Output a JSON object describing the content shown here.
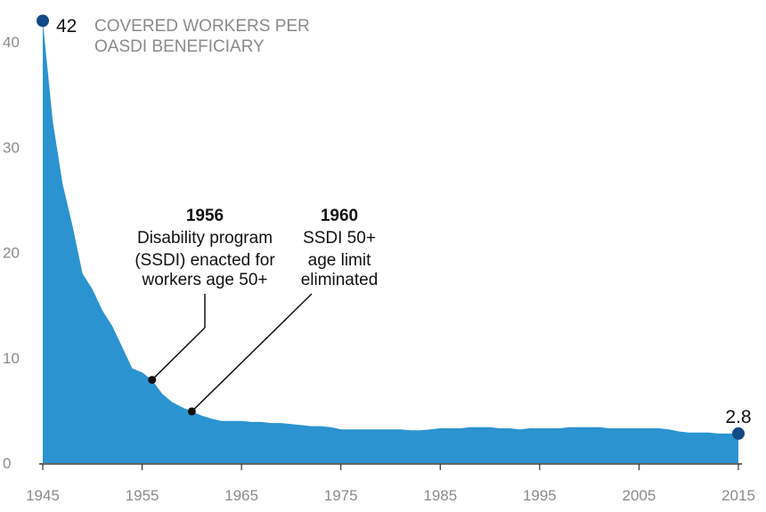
{
  "chart_data": {
    "type": "area",
    "title_lines": [
      "COVERED WORKERS PER",
      "OASDI BENEFICIARY"
    ],
    "xlabel": "",
    "ylabel": "",
    "xlim": [
      1945,
      2015
    ],
    "ylim": [
      0,
      42
    ],
    "x_ticks": [
      1945,
      1955,
      1965,
      1975,
      1985,
      1995,
      2005,
      2015
    ],
    "y_ticks": [
      0,
      10,
      20,
      30,
      40
    ],
    "grid": false,
    "series": [
      {
        "x": [
          1945,
          1946,
          1947,
          1948,
          1949,
          1950,
          1951,
          1952,
          1953,
          1954,
          1955,
          1956,
          1957,
          1958,
          1959,
          1960,
          1961,
          1962,
          1963,
          1964,
          1965,
          1966,
          1967,
          1968,
          1969,
          1970,
          1971,
          1972,
          1973,
          1974,
          1975,
          1976,
          1977,
          1978,
          1979,
          1980,
          1981,
          1982,
          1983,
          1984,
          1985,
          1986,
          1987,
          1988,
          1989,
          1990,
          1991,
          1992,
          1993,
          1994,
          1995,
          1996,
          1997,
          1998,
          1999,
          2000,
          2001,
          2002,
          2003,
          2004,
          2005,
          2006,
          2007,
          2008,
          2009,
          2010,
          2011,
          2012,
          2013,
          2014,
          2015
        ],
        "y": [
          42,
          32.5,
          26.5,
          22.5,
          18,
          16.5,
          14.5,
          13,
          11,
          9,
          8.6,
          7.9,
          6.6,
          5.8,
          5.3,
          4.9,
          4.5,
          4.2,
          4.0,
          4.0,
          4.0,
          3.9,
          3.9,
          3.8,
          3.8,
          3.7,
          3.6,
          3.5,
          3.5,
          3.4,
          3.2,
          3.2,
          3.2,
          3.2,
          3.2,
          3.2,
          3.2,
          3.1,
          3.1,
          3.2,
          3.3,
          3.3,
          3.3,
          3.4,
          3.4,
          3.4,
          3.3,
          3.3,
          3.2,
          3.3,
          3.3,
          3.3,
          3.3,
          3.4,
          3.4,
          3.4,
          3.4,
          3.3,
          3.3,
          3.3,
          3.3,
          3.3,
          3.3,
          3.2,
          3.0,
          2.9,
          2.9,
          2.9,
          2.8,
          2.8,
          2.8
        ],
        "color": "#2b93d0"
      }
    ],
    "endpoints": [
      {
        "x": 1945,
        "y": 42,
        "label": "42",
        "color": "#124a86"
      },
      {
        "x": 2015,
        "y": 2.8,
        "label": "2.8",
        "color": "#124a86"
      }
    ],
    "annotations": [
      {
        "x": 1956,
        "y": 7.9,
        "year": "1956",
        "lines": [
          "Disability program",
          "(SSDI) enacted for",
          "workers age 50+"
        ]
      },
      {
        "x": 1960,
        "y": 4.9,
        "year": "1960",
        "lines": [
          "SSDI 50+",
          "age limit",
          "eliminated"
        ]
      }
    ]
  }
}
